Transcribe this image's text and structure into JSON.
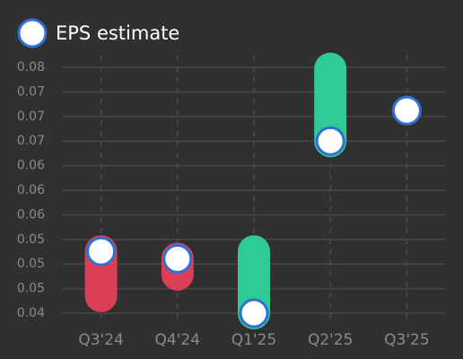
{
  "chart_data": {
    "type": "eps",
    "categories": [
      "Q3'24",
      "Q4'24",
      "Q1'25",
      "Q2'25",
      "Q3'25"
    ],
    "series": [
      {
        "name": "EPS estimate",
        "color": "#ffffff",
        "values": [
          0.0513,
          0.0503,
          0.043,
          0.0661,
          0.0702
        ]
      }
    ],
    "actual": [
      0.0453,
      0.0482,
      0.0513,
      0.0758,
      null
    ],
    "beat_color": "#2ecc94",
    "miss_color": "#dc3f55",
    "ylim": [
      0.043,
      0.076
    ],
    "yticks": [
      {
        "value": 0.043,
        "label": "0.04"
      },
      {
        "value": 0.0463,
        "label": "0.05"
      },
      {
        "value": 0.0496,
        "label": "0.05"
      },
      {
        "value": 0.0529,
        "label": "0.05"
      },
      {
        "value": 0.0562,
        "label": "0.06"
      },
      {
        "value": 0.0595,
        "label": "0.06"
      },
      {
        "value": 0.0628,
        "label": "0.06"
      },
      {
        "value": 0.0661,
        "label": "0.07"
      },
      {
        "value": 0.0694,
        "label": "0.07"
      },
      {
        "value": 0.0727,
        "label": "0.07"
      },
      {
        "value": 0.076,
        "label": "0.08"
      }
    ],
    "grid": true
  }
}
